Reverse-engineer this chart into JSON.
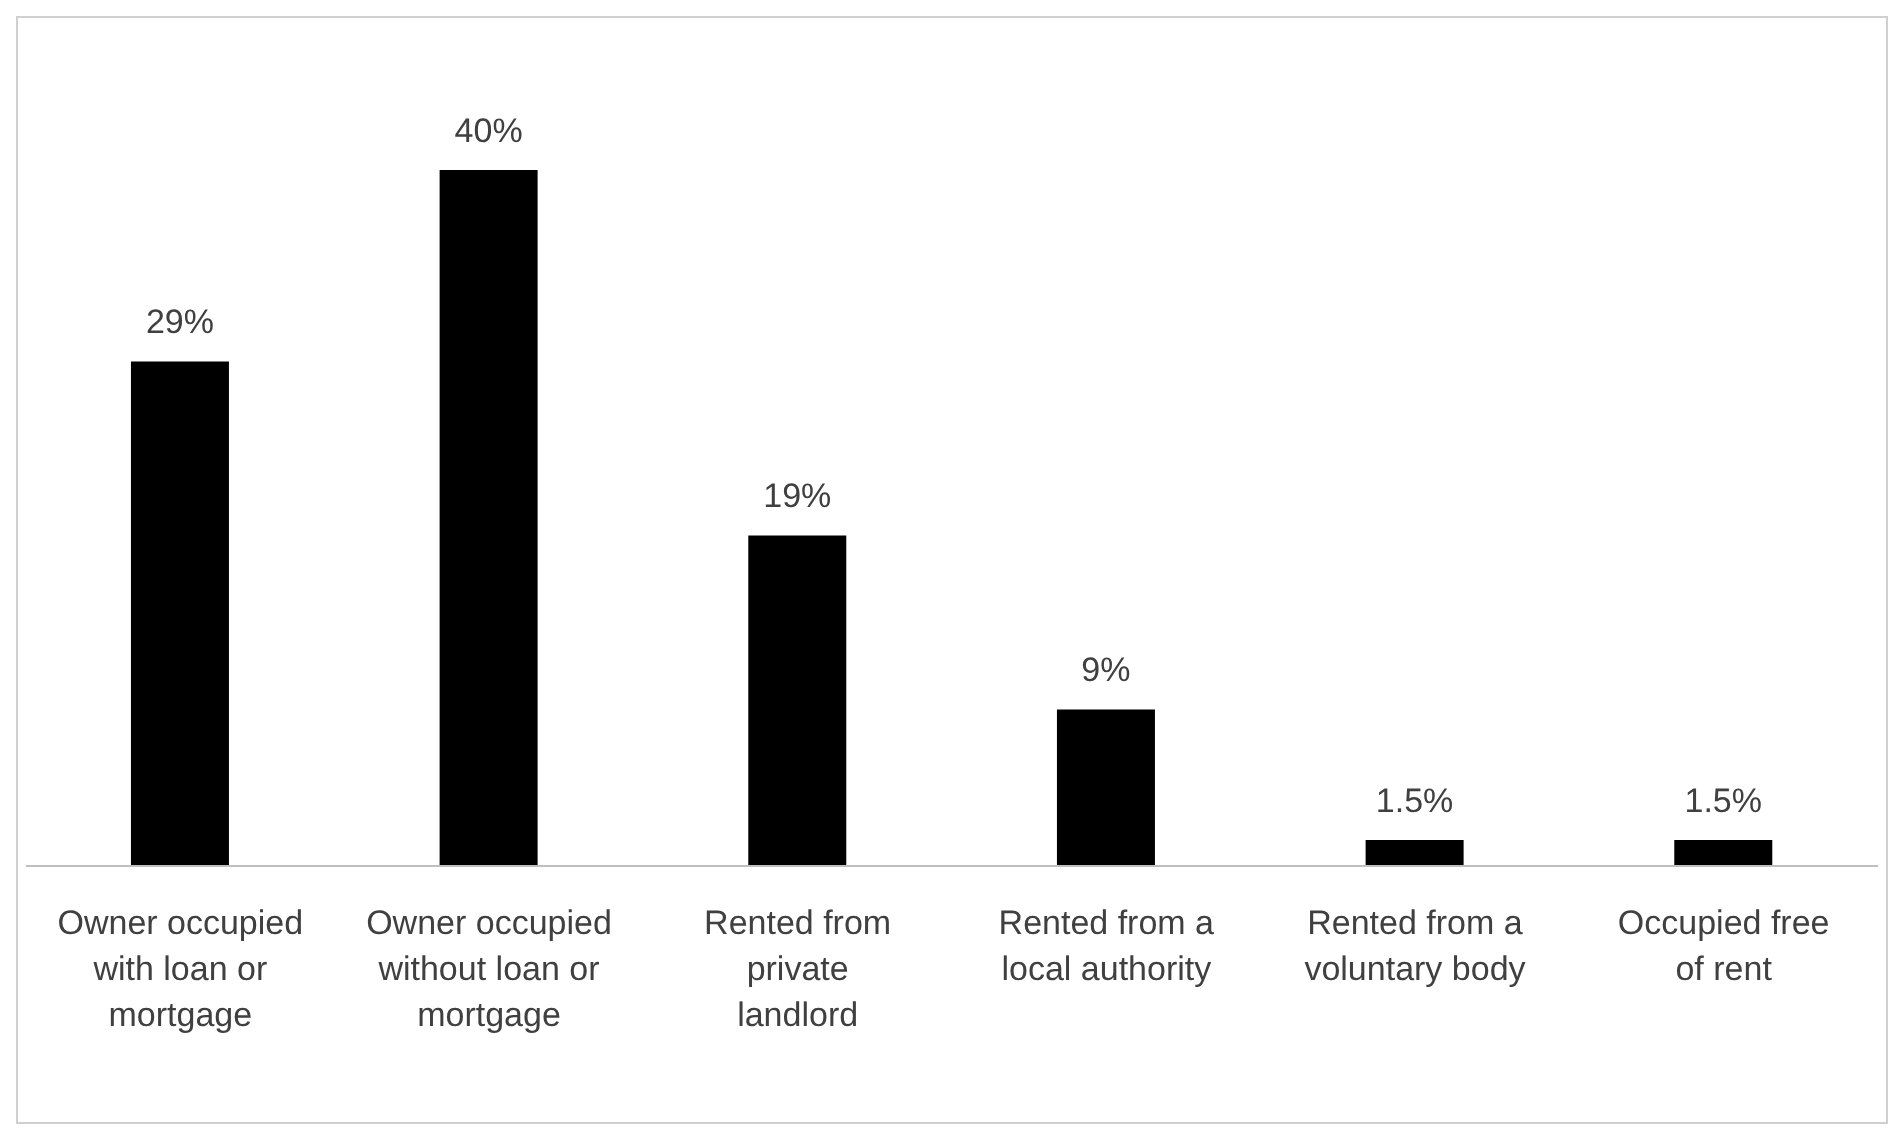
{
  "chart_data": {
    "type": "bar",
    "categories": [
      "Owner occupied with loan or mortgage",
      "Owner occupied without loan or mortgage",
      "Rented from private landlord",
      "Rented from a local authority",
      "Rented from a voluntary body",
      "Occupied free of rent"
    ],
    "values": [
      29,
      40,
      19,
      9,
      1.5,
      1.5
    ],
    "value_labels": [
      "29%",
      "40%",
      "19%",
      "9%",
      "1.5%",
      "1.5%"
    ],
    "color": "#000000"
  }
}
